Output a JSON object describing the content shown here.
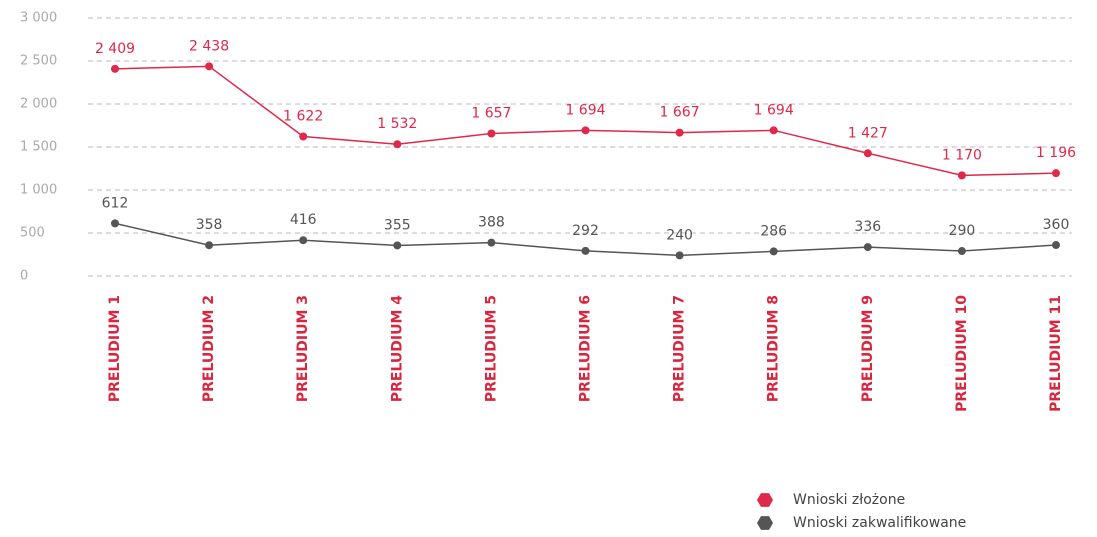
{
  "chart_data": {
    "type": "line",
    "categories": [
      "PRELUDIUM 1",
      "PRELUDIUM 2",
      "PRELUDIUM 3",
      "PRELUDIUM 4",
      "PRELUDIUM 5",
      "PRELUDIUM 6",
      "PRELUDIUM 7",
      "PRELUDIUM 8",
      "PRELUDIUM 9",
      "PRELUDIUM 10",
      "PRELUDIUM 11"
    ],
    "series": [
      {
        "name": "Wnioski złożone",
        "color": "#e0284a",
        "values": [
          2409,
          2438,
          1622,
          1532,
          1657,
          1694,
          1667,
          1694,
          1427,
          1170,
          1196
        ],
        "value_labels": [
          "2 409",
          "2 438",
          "1 622",
          "1 532",
          "1 657",
          "1 694",
          "1 667",
          "1 694",
          "1 427",
          "1 170",
          "1 196"
        ]
      },
      {
        "name": "Wnioski zakwalifikowane",
        "color": "#555555",
        "values": [
          612,
          358,
          416,
          355,
          388,
          292,
          240,
          286,
          336,
          290,
          360
        ],
        "value_labels": [
          "612",
          "358",
          "416",
          "355",
          "388",
          "292",
          "240",
          "286",
          "336",
          "290",
          "360"
        ]
      }
    ],
    "ylim": [
      0,
      3000
    ],
    "yticks": [
      0,
      500,
      {
        "value": 1000,
        "label": "1 000"
      },
      {
        "value": 1500,
        "label": "1 500"
      },
      {
        "value": 2000,
        "label": "2 000"
      },
      {
        "value": 2500,
        "label": "2 500"
      },
      {
        "value": 3000,
        "label": "3 000"
      }
    ],
    "grid": true,
    "legend": "bottom-right"
  }
}
